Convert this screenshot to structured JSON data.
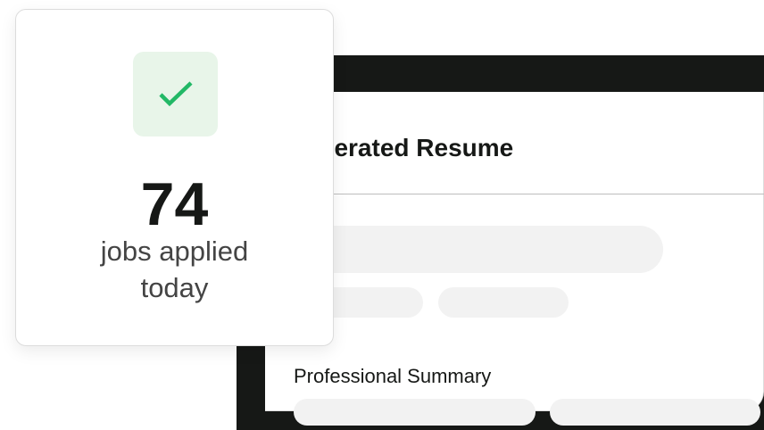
{
  "resume": {
    "title": "Generated Resume",
    "section_heading": "Professional Summary"
  },
  "stat_card": {
    "icon": "check-icon",
    "count": "74",
    "label_line1": "jobs applied",
    "label_line2": "today"
  },
  "colors": {
    "accent_green": "#22b866",
    "icon_bg": "#e8f5e9",
    "frame_dark": "#161816",
    "skeleton": "#f2f2f2"
  }
}
